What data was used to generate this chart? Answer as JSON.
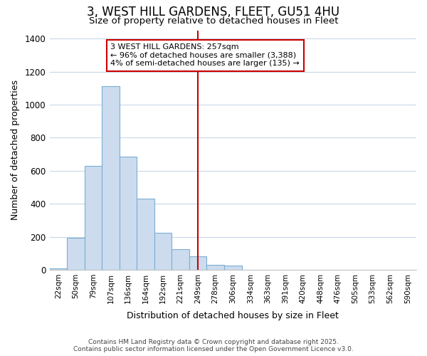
{
  "title": "3, WEST HILL GARDENS, FLEET, GU51 4HU",
  "subtitle": "Size of property relative to detached houses in Fleet",
  "xlabel": "Distribution of detached houses by size in Fleet",
  "ylabel": "Number of detached properties",
  "bar_labels": [
    "22sqm",
    "50sqm",
    "79sqm",
    "107sqm",
    "136sqm",
    "164sqm",
    "192sqm",
    "221sqm",
    "249sqm",
    "278sqm",
    "306sqm",
    "334sqm",
    "363sqm",
    "391sqm",
    "420sqm",
    "448sqm",
    "476sqm",
    "505sqm",
    "533sqm",
    "562sqm",
    "590sqm"
  ],
  "bar_values": [
    10,
    195,
    630,
    1110,
    685,
    430,
    225,
    125,
    80,
    30,
    25,
    0,
    0,
    0,
    0,
    0,
    0,
    0,
    0,
    0,
    0
  ],
  "bar_color": "#ccdcee",
  "bar_edge_color": "#7aafd4",
  "vline_x_index": 8,
  "annotation_line1": "3 WEST HILL GARDENS: 257sqm",
  "annotation_line2": "← 96% of detached houses are smaller (3,388)",
  "annotation_line3": "4% of semi-detached houses are larger (135) →",
  "annotation_box_color": "#ffffff",
  "annotation_box_edge": "#cc0000",
  "vline_color": "#cc0000",
  "ylim": [
    0,
    1450
  ],
  "yticks": [
    0,
    200,
    400,
    600,
    800,
    1000,
    1200,
    1400
  ],
  "bg_color": "#ffffff",
  "grid_color": "#c8d8e8",
  "footer_line1": "Contains HM Land Registry data © Crown copyright and database right 2025.",
  "footer_line2": "Contains public sector information licensed under the Open Government Licence v3.0."
}
